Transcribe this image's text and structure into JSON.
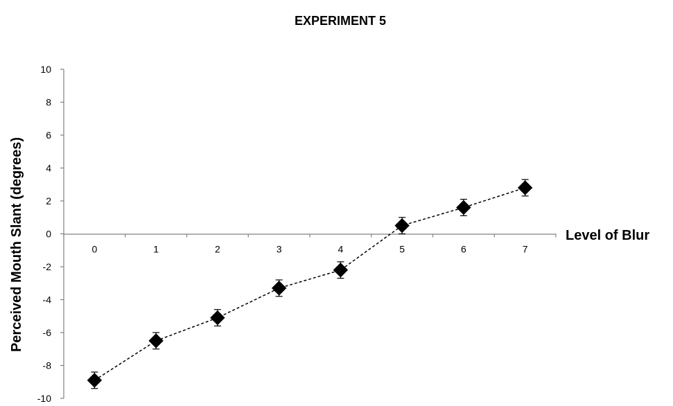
{
  "chart_data": {
    "type": "line",
    "title": "EXPERIMENT 5",
    "xlabel": "Level of Blur",
    "ylabel": "Perceived Mouth Slant (degrees)",
    "categories": [
      "0",
      "1",
      "2",
      "3",
      "4",
      "5",
      "6",
      "7"
    ],
    "ylim": [
      -10,
      10
    ],
    "yticks": [
      "10",
      "8",
      "6",
      "4",
      "2",
      "0",
      "-2",
      "-4",
      "-6",
      "-8",
      "-10"
    ],
    "series": [
      {
        "values": [
          -8.9,
          -6.5,
          -5.1,
          -3.3,
          -2.2,
          0.5,
          1.6,
          2.8
        ],
        "error": [
          0.5,
          0.5,
          0.5,
          0.5,
          0.5,
          0.5,
          0.5,
          0.5
        ],
        "line_style": "dashed",
        "marker": "diamond",
        "color": "#000000"
      }
    ],
    "grid": false,
    "legend": "none"
  }
}
